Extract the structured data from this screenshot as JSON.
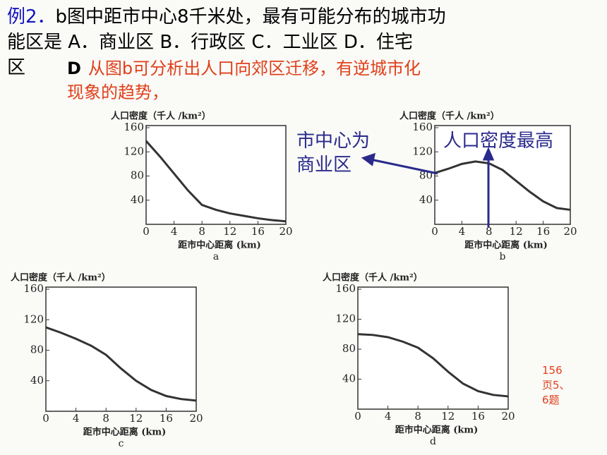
{
  "question": {
    "label": "例2．",
    "lines": [
      "b图中距市中心8千米处，最有可能分布的城市功",
      "能区是 A．商业区 B．行政区 C．工业区 D．住宅",
      "区"
    ]
  },
  "answer": {
    "letter": "D",
    "lines": [
      "从图b可分析出人口向郊区迁移，有逆城市化",
      "现象的趋势，"
    ]
  },
  "note": [
    "156",
    "页5、",
    "6题"
  ],
  "chart_data": [
    {
      "type": "line",
      "caption": "a",
      "y_label": "人口密度（千人 /km²）",
      "x_label": "距市中心距离 (km)",
      "color": "#333333",
      "x": [
        0,
        2,
        4,
        6,
        8,
        10,
        12,
        14,
        16,
        18,
        20
      ],
      "values": [
        138,
        112,
        84,
        56,
        32,
        24,
        18,
        14,
        10,
        7,
        5
      ],
      "xlim": [
        0,
        20
      ],
      "ylim": [
        0,
        160
      ],
      "xticks": [
        0,
        4,
        8,
        12,
        16,
        20
      ],
      "yticks": [
        40,
        80,
        120,
        160
      ]
    },
    {
      "type": "line",
      "caption": "b",
      "y_label": "人口密度（千人 /km²）",
      "x_label": "距市中心距离 (km)",
      "color": "#333333",
      "x": [
        0,
        2,
        4,
        6,
        8,
        10,
        12,
        14,
        16,
        18,
        20
      ],
      "values": [
        85,
        92,
        100,
        104,
        101,
        90,
        72,
        54,
        38,
        27,
        24
      ],
      "xlim": [
        0,
        20
      ],
      "ylim": [
        0,
        160
      ],
      "xticks": [
        0,
        4,
        8,
        12,
        16,
        20
      ],
      "yticks": [
        40,
        80,
        120,
        160
      ],
      "annotations": [
        [
          "市中心为",
          "商业区"
        ],
        [
          "人口密度最高"
        ]
      ]
    },
    {
      "type": "line",
      "caption": "c",
      "y_label": "人口密度（千人 /km²）",
      "x_label": "距市中心距离 (km)",
      "color": "#333333",
      "x": [
        0,
        2,
        4,
        6,
        8,
        10,
        12,
        14,
        16,
        18,
        20
      ],
      "values": [
        110,
        103,
        95,
        86,
        74,
        56,
        40,
        28,
        20,
        16,
        14
      ],
      "xlim": [
        0,
        20
      ],
      "ylim": [
        0,
        160
      ],
      "xticks": [
        0,
        4,
        8,
        12,
        16,
        20
      ],
      "yticks": [
        40,
        80,
        120,
        160
      ]
    },
    {
      "type": "line",
      "caption": "d",
      "y_label": "人口密度（千人 /km²）",
      "x_label": "距市中心距离 (km)",
      "color": "#333333",
      "x": [
        0,
        2,
        4,
        6,
        8,
        10,
        12,
        14,
        16,
        18,
        20
      ],
      "values": [
        100,
        99,
        96,
        90,
        82,
        68,
        50,
        34,
        24,
        19,
        17
      ],
      "xlim": [
        0,
        20
      ],
      "ylim": [
        0,
        160
      ],
      "xticks": [
        0,
        4,
        8,
        12,
        16,
        20
      ],
      "yticks": [
        40,
        80,
        120,
        160
      ]
    }
  ]
}
